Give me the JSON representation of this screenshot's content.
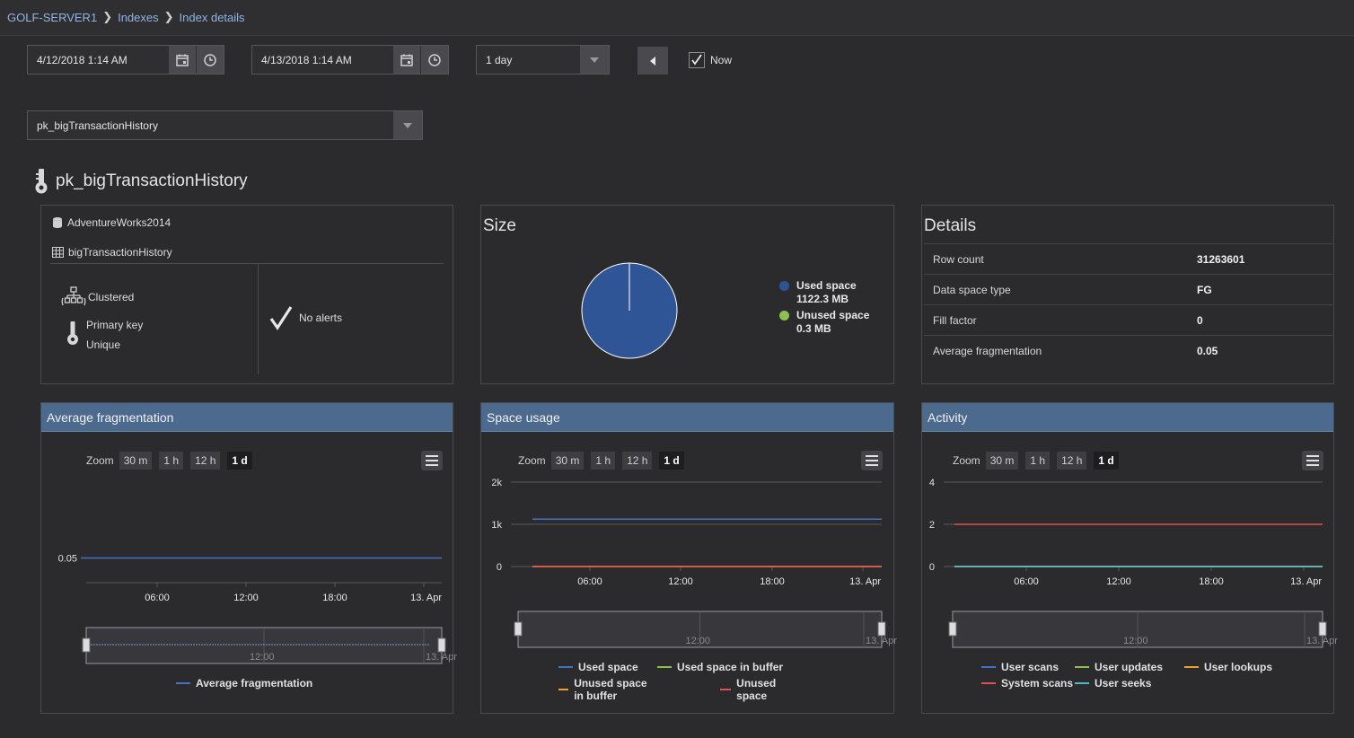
{
  "breadcrumb": {
    "server": "GOLF-SERVER1",
    "indexes": "Indexes",
    "current": "Index details"
  },
  "toolbar": {
    "start_datetime": "4/12/2018 1:14 AM",
    "end_datetime": "4/13/2018 1:14 AM",
    "range": "1 day",
    "now_label": "Now",
    "now_checked": true
  },
  "index_select": "pk_bigTransactionHistory",
  "index_title": "pk_bigTransactionHistory",
  "info": {
    "database": "AdventureWorks2014",
    "table": "bigTransactionHistory",
    "index_type": "Clustered",
    "key_type": "Primary key",
    "uniqueness": "Unique",
    "alerts": "No alerts"
  },
  "size": {
    "title": "Size",
    "used_label": "Used space",
    "used_value": "1122.3 MB",
    "unused_label": "Unused space",
    "unused_value": "0.3 MB",
    "used_color": "#2f5597",
    "unused_color": "#8cc152"
  },
  "details": {
    "title": "Details",
    "rows": [
      {
        "key": "Row count",
        "value": "31263601"
      },
      {
        "key": "Data space type",
        "value": "FG"
      },
      {
        "key": "Fill factor",
        "value": "0"
      },
      {
        "key": "Average fragmentation",
        "value": "0.05"
      }
    ]
  },
  "zoom": {
    "label": "Zoom",
    "options": [
      "30 m",
      "1 h",
      "12 h",
      "1 d"
    ],
    "selected": "1 d"
  },
  "charts": {
    "frag": {
      "title": "Average fragmentation",
      "nav_label": "12:00",
      "nav_end_label": "13. Apr",
      "legend": [
        {
          "name": "Average fragmentation",
          "color": "#4472c4"
        }
      ]
    },
    "space": {
      "title": "Space usage",
      "nav_label": "12:00",
      "nav_end_label": "13. Apr",
      "legend": [
        {
          "name": "Used space",
          "color": "#4472c4"
        },
        {
          "name": "Used space in buffer",
          "color": "#8cc152"
        },
        {
          "name": "Unused space in buffer",
          "color": "#f0a030"
        },
        {
          "name": "Unused space",
          "color": "#e05050"
        }
      ]
    },
    "activity": {
      "title": "Activity",
      "nav_label": "12:00",
      "nav_end_label": "13. Apr",
      "legend": [
        {
          "name": "User scans",
          "color": "#4472c4"
        },
        {
          "name": "User updates",
          "color": "#8cc152"
        },
        {
          "name": "User lookups",
          "color": "#f0a030"
        },
        {
          "name": "System scans",
          "color": "#e05050"
        },
        {
          "name": "User seeks",
          "color": "#4fb8d0"
        }
      ]
    }
  },
  "chart_data": [
    {
      "type": "pie",
      "title": "Size",
      "categories": [
        "Used space",
        "Unused space"
      ],
      "values": [
        1122.3,
        0.3
      ],
      "unit": "MB"
    },
    {
      "type": "line",
      "title": "Average fragmentation",
      "x": [
        "06:00",
        "12:00",
        "18:00",
        "13. Apr"
      ],
      "yticks": [
        "0.05"
      ],
      "series": [
        {
          "name": "Average fragmentation",
          "values": [
            0.05,
            0.05,
            0.05,
            0.05
          ]
        }
      ]
    },
    {
      "type": "line",
      "title": "Space usage",
      "x": [
        "06:00",
        "12:00",
        "18:00",
        "13. Apr"
      ],
      "yticks": [
        "0",
        "1k",
        "2k"
      ],
      "ylim": [
        0,
        2000
      ],
      "series": [
        {
          "name": "Used space",
          "values": [
            1122.3,
            1122.3,
            1122.3,
            1122.3
          ]
        },
        {
          "name": "Used space in buffer",
          "values": [
            0,
            0,
            0,
            0
          ]
        },
        {
          "name": "Unused space in buffer",
          "values": [
            0,
            0,
            0,
            0
          ]
        },
        {
          "name": "Unused space",
          "values": [
            0.3,
            0.3,
            0.3,
            0.3
          ]
        }
      ]
    },
    {
      "type": "line",
      "title": "Activity",
      "x": [
        "06:00",
        "12:00",
        "18:00",
        "13. Apr"
      ],
      "yticks": [
        "0",
        "2",
        "4"
      ],
      "ylim": [
        0,
        4
      ],
      "series": [
        {
          "name": "User scans",
          "values": [
            0,
            0,
            0,
            0
          ]
        },
        {
          "name": "User updates",
          "values": [
            0,
            0,
            0,
            0
          ]
        },
        {
          "name": "User lookups",
          "values": [
            0,
            0,
            0,
            0
          ]
        },
        {
          "name": "System scans",
          "values": [
            2,
            2,
            2,
            2
          ]
        },
        {
          "name": "User seeks",
          "values": [
            0,
            0,
            0,
            0
          ]
        }
      ]
    }
  ]
}
